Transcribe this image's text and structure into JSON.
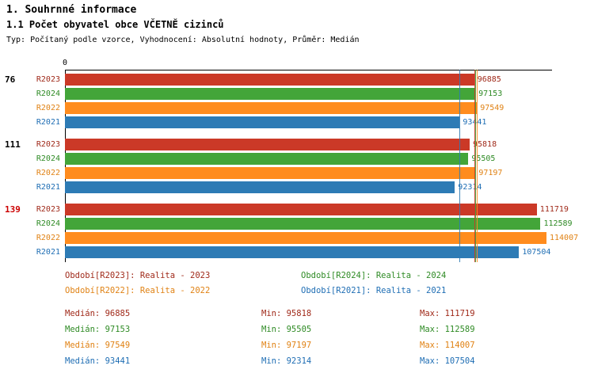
{
  "header": {
    "section_title": "1. Souhrnné informace",
    "chart_title": "1.1 Počet obyvatel obce VČETNĚ cizinců",
    "meta": "Typ: Počítaný podle vzorce, Vyhodnocení: Absolutní hodnoty, Průměr: Medián"
  },
  "colors": {
    "axis": "#000000",
    "group_label_default": "#000000",
    "group_label_highlight": "#CC0000"
  },
  "chart_data": {
    "type": "bar",
    "orientation": "horizontal",
    "title": "1.1 Počet obyvatel obce VČETNĚ cizinců",
    "axis": {
      "zero_label": "0",
      "xmin": 0,
      "xmax": 114007
    },
    "average_type": "Medián",
    "series": [
      {
        "name": "R2023",
        "color": "#CB3927",
        "text_color": "#A02A1A",
        "median": 96885,
        "min": 95818,
        "max": 111719
      },
      {
        "name": "R2024",
        "color": "#43A539",
        "text_color": "#2F8B25",
        "median": 97153,
        "min": 95505,
        "max": 112589
      },
      {
        "name": "R2022",
        "color": "#FF8C1E",
        "text_color": "#E08214",
        "median": 97549,
        "min": 97197,
        "max": 114007
      },
      {
        "name": "R2021",
        "color": "#2D7BB5",
        "text_color": "#1F6EB4",
        "median": 93441,
        "min": 92314,
        "max": 107504
      }
    ],
    "groups": [
      {
        "label": "76",
        "label_color": "#000000",
        "bars": [
          {
            "series": "R2023",
            "value": 96885
          },
          {
            "series": "R2024",
            "value": 97153
          },
          {
            "series": "R2022",
            "value": 97549
          },
          {
            "series": "R2021",
            "value": 93441
          }
        ]
      },
      {
        "label": "111",
        "label_color": "#000000",
        "bars": [
          {
            "series": "R2023",
            "value": 95818
          },
          {
            "series": "R2024",
            "value": 95505
          },
          {
            "series": "R2022",
            "value": 97197
          },
          {
            "series": "R2021",
            "value": 92314
          }
        ]
      },
      {
        "label": "139",
        "label_color": "#CC0000",
        "bars": [
          {
            "series": "R2023",
            "value": 111719
          },
          {
            "series": "R2024",
            "value": 112589
          },
          {
            "series": "R2022",
            "value": 114007
          },
          {
            "series": "R2021",
            "value": 107504
          }
        ]
      }
    ]
  },
  "legend": {
    "items": [
      {
        "label": "Období[R2023]: Realita - 2023",
        "color": "#A02A1A"
      },
      {
        "label": "Období[R2024]: Realita - 2024",
        "color": "#2F8B25"
      },
      {
        "label": "Období[R2022]: Realita - 2022",
        "color": "#E08214"
      },
      {
        "label": "Období[R2021]: Realita - 2021",
        "color": "#1F6EB4"
      }
    ]
  },
  "stats": {
    "rows": [
      {
        "series": "R2023",
        "color": "#A02A1A",
        "median": "Medián: 96885",
        "min": "Min: 95818",
        "max": "Max: 111719"
      },
      {
        "series": "R2024",
        "color": "#2F8B25",
        "median": "Medián: 97153",
        "min": "Min: 95505",
        "max": "Max: 112589"
      },
      {
        "series": "R2022",
        "color": "#E08214",
        "median": "Medián: 97549",
        "min": "Min: 97197",
        "max": "Max: 114007"
      },
      {
        "series": "R2021",
        "color": "#1F6EB4",
        "median": "Medián: 93441",
        "min": "Min: 92314",
        "max": "Max: 107504"
      }
    ]
  }
}
